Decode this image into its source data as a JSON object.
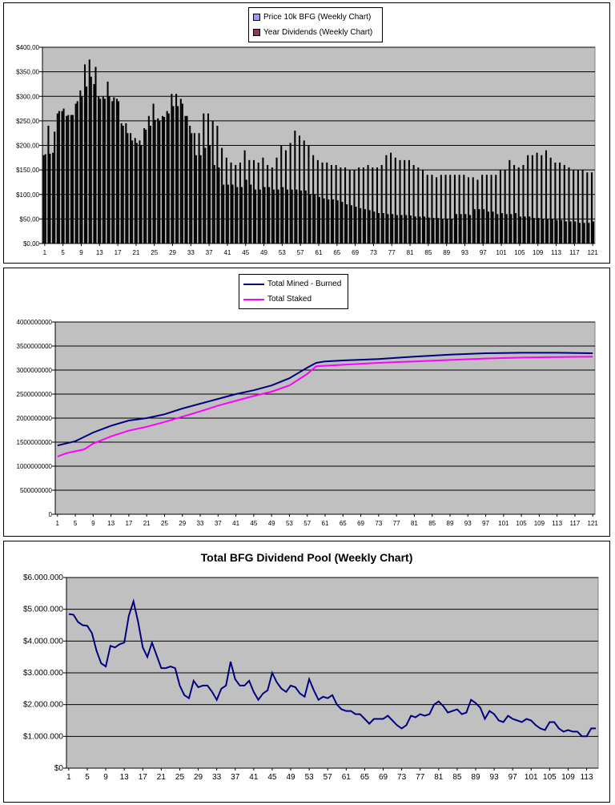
{
  "chart_data": [
    {
      "type": "bar",
      "title": "",
      "x_tick_labels": [
        "1",
        "5",
        "9",
        "13",
        "17",
        "21",
        "25",
        "29",
        "33",
        "37",
        "41",
        "45",
        "49",
        "53",
        "57",
        "61",
        "65",
        "69",
        "73",
        "77",
        "81",
        "85",
        "89",
        "93",
        "97",
        "101",
        "105",
        "109",
        "113",
        "117",
        "121"
      ],
      "y_tick_labels": [
        "$0,00",
        "$50,00",
        "$100,00",
        "$150,00",
        "$200,00",
        "$250,00",
        "$300,00",
        "$350,00",
        "$400,00"
      ],
      "ylim": [
        0,
        400
      ],
      "legend_position": "top",
      "grid": true,
      "series": [
        {
          "name": "Price 10k BFG (Weekly Chart)",
          "color": "#9999ff",
          "values": [
            180,
            240,
            185,
            265,
            270,
            260,
            262,
            285,
            312,
            365,
            375,
            325,
            300,
            300,
            330,
            290,
            295,
            245,
            245,
            225,
            215,
            210,
            235,
            260,
            285,
            255,
            260,
            270,
            305,
            305,
            295,
            260,
            240,
            225,
            225,
            265,
            265,
            250,
            240,
            195,
            175,
            165,
            160,
            165,
            190,
            170,
            170,
            165,
            175,
            160,
            155,
            175,
            200,
            190,
            205,
            230,
            220,
            210,
            200,
            180,
            170,
            165,
            165,
            160,
            160,
            155,
            155,
            150,
            150,
            155,
            155,
            160,
            155,
            155,
            160,
            180,
            185,
            175,
            170,
            170,
            170,
            160,
            155,
            150,
            140,
            140,
            135,
            140,
            140,
            140,
            140,
            140,
            140,
            135,
            135,
            130,
            140,
            140,
            140,
            140,
            150,
            150,
            170,
            160,
            155,
            160,
            180,
            180,
            185,
            180,
            190,
            175,
            165,
            165,
            160,
            155,
            150,
            150,
            150,
            145,
            145
          ]
        },
        {
          "name": "Year Dividends (Weekly Chart)",
          "color": "#993366",
          "values": [
            182,
            183,
            228,
            270,
            275,
            262,
            262,
            290,
            300,
            320,
            340,
            360,
            295,
            295,
            300,
            298,
            290,
            240,
            225,
            210,
            205,
            200,
            232,
            240,
            252,
            250,
            258,
            265,
            280,
            280,
            285,
            260,
            225,
            180,
            180,
            195,
            200,
            160,
            155,
            120,
            120,
            120,
            115,
            115,
            130,
            120,
            110,
            110,
            115,
            115,
            110,
            110,
            115,
            110,
            110,
            110,
            108,
            108,
            100,
            100,
            95,
            92,
            90,
            90,
            88,
            85,
            80,
            78,
            75,
            72,
            70,
            68,
            65,
            62,
            62,
            60,
            60,
            58,
            58,
            58,
            57,
            55,
            55,
            55,
            53,
            52,
            52,
            50,
            50,
            50,
            60,
            60,
            60,
            58,
            70,
            70,
            70,
            65,
            65,
            60,
            62,
            60,
            60,
            62,
            55,
            55,
            55,
            52,
            52,
            50,
            50,
            50,
            48,
            48,
            45,
            45,
            45,
            42,
            42,
            42,
            45
          ]
        }
      ]
    },
    {
      "type": "line",
      "title": "",
      "x_tick_labels": [
        "1",
        "5",
        "9",
        "13",
        "17",
        "21",
        "25",
        "29",
        "33",
        "37",
        "41",
        "45",
        "49",
        "53",
        "57",
        "61",
        "65",
        "69",
        "73",
        "77",
        "81",
        "85",
        "89",
        "93",
        "97",
        "101",
        "105",
        "109",
        "113",
        "117",
        "121"
      ],
      "y_tick_labels": [
        "0",
        "500000000",
        "1000000000",
        "1500000000",
        "2000000000",
        "2500000000",
        "3000000000",
        "3500000000",
        "4000000000"
      ],
      "ylim": [
        0,
        4000000000
      ],
      "legend_position": "top-left",
      "grid": true,
      "series": [
        {
          "name": "Total Mined - Burned",
          "color": "#000080",
          "points": [
            [
              1,
              1430000000
            ],
            [
              5,
              1520000000
            ],
            [
              9,
              1700000000
            ],
            [
              13,
              1840000000
            ],
            [
              17,
              1950000000
            ],
            [
              21,
              2000000000
            ],
            [
              25,
              2080000000
            ],
            [
              29,
              2200000000
            ],
            [
              33,
              2300000000
            ],
            [
              37,
              2400000000
            ],
            [
              41,
              2500000000
            ],
            [
              45,
              2580000000
            ],
            [
              49,
              2680000000
            ],
            [
              53,
              2830000000
            ],
            [
              57,
              3050000000
            ],
            [
              59,
              3150000000
            ],
            [
              61,
              3180000000
            ],
            [
              65,
              3200000000
            ],
            [
              73,
              3230000000
            ],
            [
              81,
              3280000000
            ],
            [
              89,
              3320000000
            ],
            [
              97,
              3350000000
            ],
            [
              105,
              3360000000
            ],
            [
              113,
              3360000000
            ],
            [
              121,
              3350000000
            ]
          ]
        },
        {
          "name": "Total Staked",
          "color": "#ff00ff",
          "points": [
            [
              1,
              1200000000
            ],
            [
              3,
              1270000000
            ],
            [
              5,
              1310000000
            ],
            [
              7,
              1350000000
            ],
            [
              9,
              1470000000
            ],
            [
              13,
              1620000000
            ],
            [
              17,
              1740000000
            ],
            [
              21,
              1820000000
            ],
            [
              25,
              1920000000
            ],
            [
              29,
              2030000000
            ],
            [
              33,
              2140000000
            ],
            [
              37,
              2260000000
            ],
            [
              41,
              2360000000
            ],
            [
              45,
              2460000000
            ],
            [
              49,
              2550000000
            ],
            [
              53,
              2680000000
            ],
            [
              57,
              2920000000
            ],
            [
              59,
              3080000000
            ],
            [
              65,
              3110000000
            ],
            [
              73,
              3150000000
            ],
            [
              81,
              3180000000
            ],
            [
              89,
              3210000000
            ],
            [
              97,
              3240000000
            ],
            [
              105,
              3260000000
            ],
            [
              113,
              3270000000
            ],
            [
              121,
              3280000000
            ]
          ]
        }
      ]
    },
    {
      "type": "line",
      "title": "Total BFG Dividend Pool (Weekly Chart)",
      "x_tick_labels": [
        "1",
        "5",
        "9",
        "13",
        "17",
        "21",
        "25",
        "29",
        "33",
        "37",
        "41",
        "45",
        "49",
        "53",
        "57",
        "61",
        "65",
        "69",
        "73",
        "77",
        "81",
        "85",
        "89",
        "93",
        "97",
        "101",
        "105",
        "109",
        "113"
      ],
      "y_tick_labels": [
        "$0",
        "$1.000.000",
        "$2.000.000",
        "$3.000.000",
        "$4.000.000",
        "$5.000.000",
        "$6.000.000"
      ],
      "ylim": [
        0,
        6000000
      ],
      "grid": true,
      "series": [
        {
          "name": "",
          "color": "#000080",
          "points": [
            [
              1,
              4850000
            ],
            [
              2,
              4830000
            ],
            [
              3,
              4600000
            ],
            [
              4,
              4500000
            ],
            [
              5,
              4480000
            ],
            [
              6,
              4250000
            ],
            [
              7,
              3700000
            ],
            [
              8,
              3300000
            ],
            [
              9,
              3200000
            ],
            [
              10,
              3850000
            ],
            [
              11,
              3800000
            ],
            [
              12,
              3900000
            ],
            [
              13,
              3950000
            ],
            [
              14,
              4800000
            ],
            [
              15,
              5250000
            ],
            [
              16,
              4600000
            ],
            [
              17,
              3800000
            ],
            [
              18,
              3500000
            ],
            [
              19,
              3950000
            ],
            [
              20,
              3550000
            ],
            [
              21,
              3150000
            ],
            [
              22,
              3150000
            ],
            [
              23,
              3200000
            ],
            [
              24,
              3150000
            ],
            [
              25,
              2600000
            ],
            [
              26,
              2300000
            ],
            [
              27,
              2200000
            ],
            [
              28,
              2750000
            ],
            [
              29,
              2550000
            ],
            [
              30,
              2600000
            ],
            [
              31,
              2600000
            ],
            [
              32,
              2400000
            ],
            [
              33,
              2150000
            ],
            [
              34,
              2500000
            ],
            [
              35,
              2600000
            ],
            [
              36,
              3350000
            ],
            [
              37,
              2800000
            ],
            [
              38,
              2600000
            ],
            [
              39,
              2600000
            ],
            [
              40,
              2750000
            ],
            [
              41,
              2400000
            ],
            [
              42,
              2150000
            ],
            [
              43,
              2350000
            ],
            [
              44,
              2450000
            ],
            [
              45,
              3000000
            ],
            [
              46,
              2700000
            ],
            [
              47,
              2500000
            ],
            [
              48,
              2400000
            ],
            [
              49,
              2600000
            ],
            [
              50,
              2550000
            ],
            [
              51,
              2350000
            ],
            [
              52,
              2250000
            ],
            [
              53,
              2800000
            ],
            [
              54,
              2450000
            ],
            [
              55,
              2150000
            ],
            [
              56,
              2250000
            ],
            [
              57,
              2200000
            ],
            [
              58,
              2300000
            ],
            [
              59,
              2000000
            ],
            [
              60,
              1850000
            ],
            [
              61,
              1800000
            ],
            [
              62,
              1800000
            ],
            [
              63,
              1700000
            ],
            [
              64,
              1700000
            ],
            [
              65,
              1550000
            ],
            [
              66,
              1400000
            ],
            [
              67,
              1550000
            ],
            [
              68,
              1550000
            ],
            [
              69,
              1550000
            ],
            [
              70,
              1650000
            ],
            [
              71,
              1500000
            ],
            [
              72,
              1350000
            ],
            [
              73,
              1250000
            ],
            [
              74,
              1350000
            ],
            [
              75,
              1650000
            ],
            [
              76,
              1600000
            ],
            [
              77,
              1700000
            ],
            [
              78,
              1650000
            ],
            [
              79,
              1700000
            ],
            [
              80,
              2000000
            ],
            [
              81,
              2100000
            ],
            [
              82,
              1950000
            ],
            [
              83,
              1750000
            ],
            [
              84,
              1800000
            ],
            [
              85,
              1850000
            ],
            [
              86,
              1700000
            ],
            [
              87,
              1750000
            ],
            [
              88,
              2150000
            ],
            [
              89,
              2050000
            ],
            [
              90,
              1900000
            ],
            [
              91,
              1550000
            ],
            [
              92,
              1800000
            ],
            [
              93,
              1700000
            ],
            [
              94,
              1500000
            ],
            [
              95,
              1450000
            ],
            [
              96,
              1650000
            ],
            [
              97,
              1550000
            ],
            [
              98,
              1500000
            ],
            [
              99,
              1450000
            ],
            [
              100,
              1550000
            ],
            [
              101,
              1500000
            ],
            [
              102,
              1350000
            ],
            [
              103,
              1250000
            ],
            [
              104,
              1200000
            ],
            [
              105,
              1450000
            ],
            [
              106,
              1450000
            ],
            [
              107,
              1250000
            ],
            [
              108,
              1150000
            ],
            [
              109,
              1200000
            ],
            [
              110,
              1150000
            ],
            [
              111,
              1150000
            ],
            [
              112,
              1000000
            ],
            [
              113,
              1000000
            ],
            [
              114,
              1250000
            ],
            [
              115,
              1250000
            ]
          ]
        }
      ]
    }
  ]
}
